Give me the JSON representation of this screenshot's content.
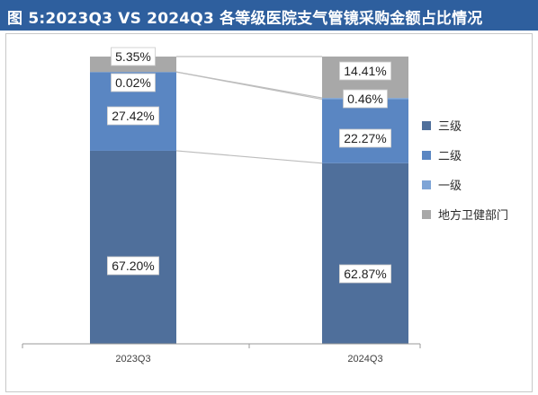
{
  "title": "图 5:2023Q3 VS 2024Q3 各等级医院支气管镜采购金额占比情况",
  "colors": {
    "title_bg": "#2e5f9e",
    "三级": "#4f6f9b",
    "二级": "#5a86c2",
    "一级": "#7ea4d6",
    "地方卫健部门": "#a8a8a8"
  },
  "chart_data": {
    "type": "bar",
    "stacked": true,
    "categories": [
      "2023Q3",
      "2024Q3"
    ],
    "series": [
      {
        "name": "三级",
        "values": [
          67.2,
          62.87
        ],
        "labels": [
          "67.20%",
          "62.87%"
        ]
      },
      {
        "name": "二级",
        "values": [
          27.42,
          22.27
        ],
        "labels": [
          "27.42%",
          "22.27%"
        ]
      },
      {
        "name": "一级",
        "values": [
          0.02,
          0.46
        ],
        "labels": [
          "0.02%",
          "0.46%"
        ]
      },
      {
        "name": "地方卫健部门",
        "values": [
          5.35,
          14.41
        ],
        "labels": [
          "5.35%",
          "14.41%"
        ]
      }
    ],
    "ylim": [
      0,
      100
    ],
    "legend_position": "right",
    "grid": false
  }
}
